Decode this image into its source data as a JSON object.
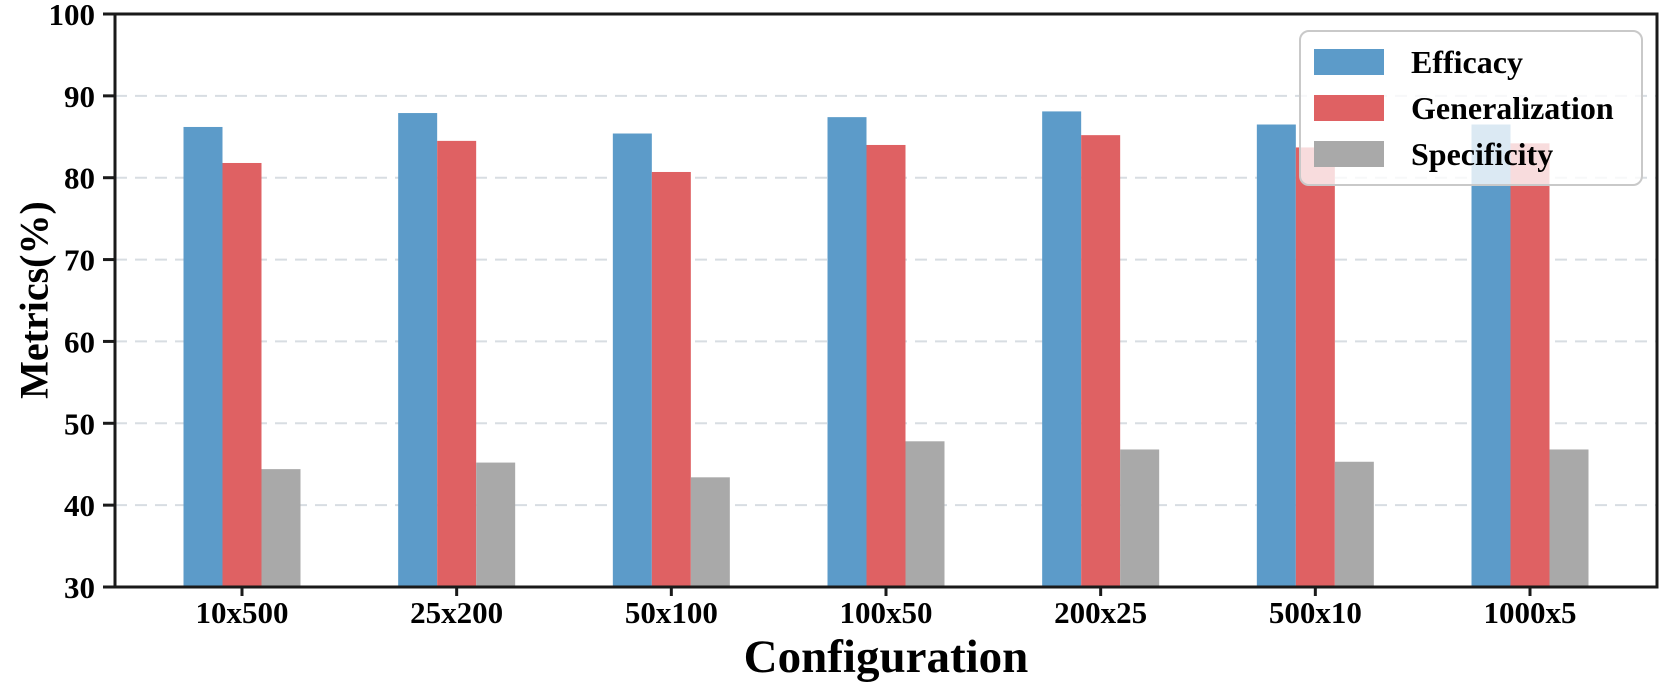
{
  "chart_data": {
    "type": "bar",
    "title": "",
    "xlabel": "Configuration",
    "ylabel": "Metrics(%)",
    "categories": [
      "10x500",
      "25x200",
      "50x100",
      "100x50",
      "200x25",
      "500x10",
      "1000x5"
    ],
    "series": [
      {
        "name": "Efficacy",
        "color": "#5C9BC9",
        "values": [
          86.2,
          87.9,
          85.4,
          87.4,
          88.1,
          86.5,
          86.5
        ]
      },
      {
        "name": "Generalization",
        "color": "#DF6163",
        "values": [
          81.8,
          84.5,
          80.7,
          84.0,
          85.2,
          83.7,
          84.2
        ]
      },
      {
        "name": "Specificity",
        "color": "#A9A9A9",
        "values": [
          44.4,
          45.2,
          43.4,
          47.8,
          46.8,
          45.3,
          46.8
        ]
      }
    ],
    "ylim": [
      30,
      100
    ],
    "yticks": [
      30,
      40,
      50,
      60,
      70,
      80,
      90,
      100
    ],
    "grid": "horizontal-dashed",
    "grid_color": "#D8DDE2",
    "axis_color": "#1A1A1A",
    "legend_position": "upper-right"
  }
}
